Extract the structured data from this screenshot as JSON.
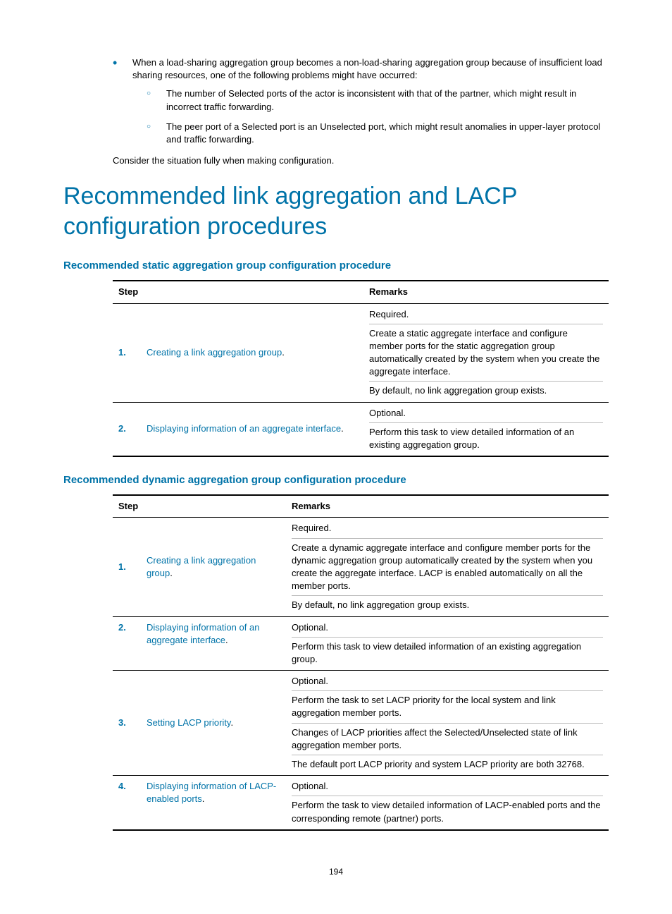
{
  "intro": {
    "bullet": "When a load-sharing aggregation group becomes a non-load-sharing aggregation group because of insufficient load sharing resources, one of the following problems might have occurred:",
    "sub1": "The number of Selected ports of the actor is inconsistent with that of the partner, which might result in incorrect traffic forwarding.",
    "sub2": "The peer port of a Selected port is an Unselected port, which might result anomalies in upper-layer protocol and traffic forwarding.",
    "consider": "Consider the situation fully when making configuration."
  },
  "h1": "Recommended link aggregation and LACP configuration procedures",
  "static": {
    "heading": "Recommended static aggregation group configuration procedure",
    "headers": {
      "step": "Step",
      "remarks": "Remarks"
    },
    "rows": [
      {
        "num": "1.",
        "link": "Creating a link aggregation group",
        "remarks": [
          "Required.",
          "Create a static aggregate interface and configure member ports for the static aggregation group automatically created by the system when you create the aggregate interface.",
          "By default, no link aggregation group exists."
        ]
      },
      {
        "num": "2.",
        "link": "Displaying information of an aggregate interface",
        "remarks": [
          "Optional.",
          "Perform this task to view detailed information of an existing aggregation group."
        ]
      }
    ]
  },
  "dynamic": {
    "heading": "Recommended dynamic aggregation group configuration procedure",
    "headers": {
      "step": "Step",
      "remarks": "Remarks"
    },
    "rows": [
      {
        "num": "1.",
        "link": "Creating a link aggregation group",
        "remarks": [
          "Required.",
          "Create a dynamic aggregate interface and configure member ports for the dynamic aggregation group automatically created by the system when you create the aggregate interface. LACP is enabled automatically on all the member ports.",
          "By default, no link aggregation group exists."
        ]
      },
      {
        "num": "2.",
        "link": "Displaying information of an aggregate interface",
        "remarks": [
          "Optional.",
          "Perform this task to view detailed information of an existing aggregation group."
        ]
      },
      {
        "num": "3.",
        "link": "Setting LACP priority",
        "remarks": [
          "Optional.",
          "Perform the task to set LACP priority for the local system and link aggregation member ports.",
          "Changes of LACP priorities affect the Selected/Unselected state of link aggregation member ports.",
          "The default port LACP priority and system LACP priority are both 32768."
        ]
      },
      {
        "num": "4.",
        "link": "Displaying information of LACP-enabled ports",
        "remarks": [
          "Optional.",
          "Perform the task to view detailed information of LACP-enabled ports and the corresponding remote (partner) ports."
        ]
      }
    ]
  },
  "page": "194"
}
